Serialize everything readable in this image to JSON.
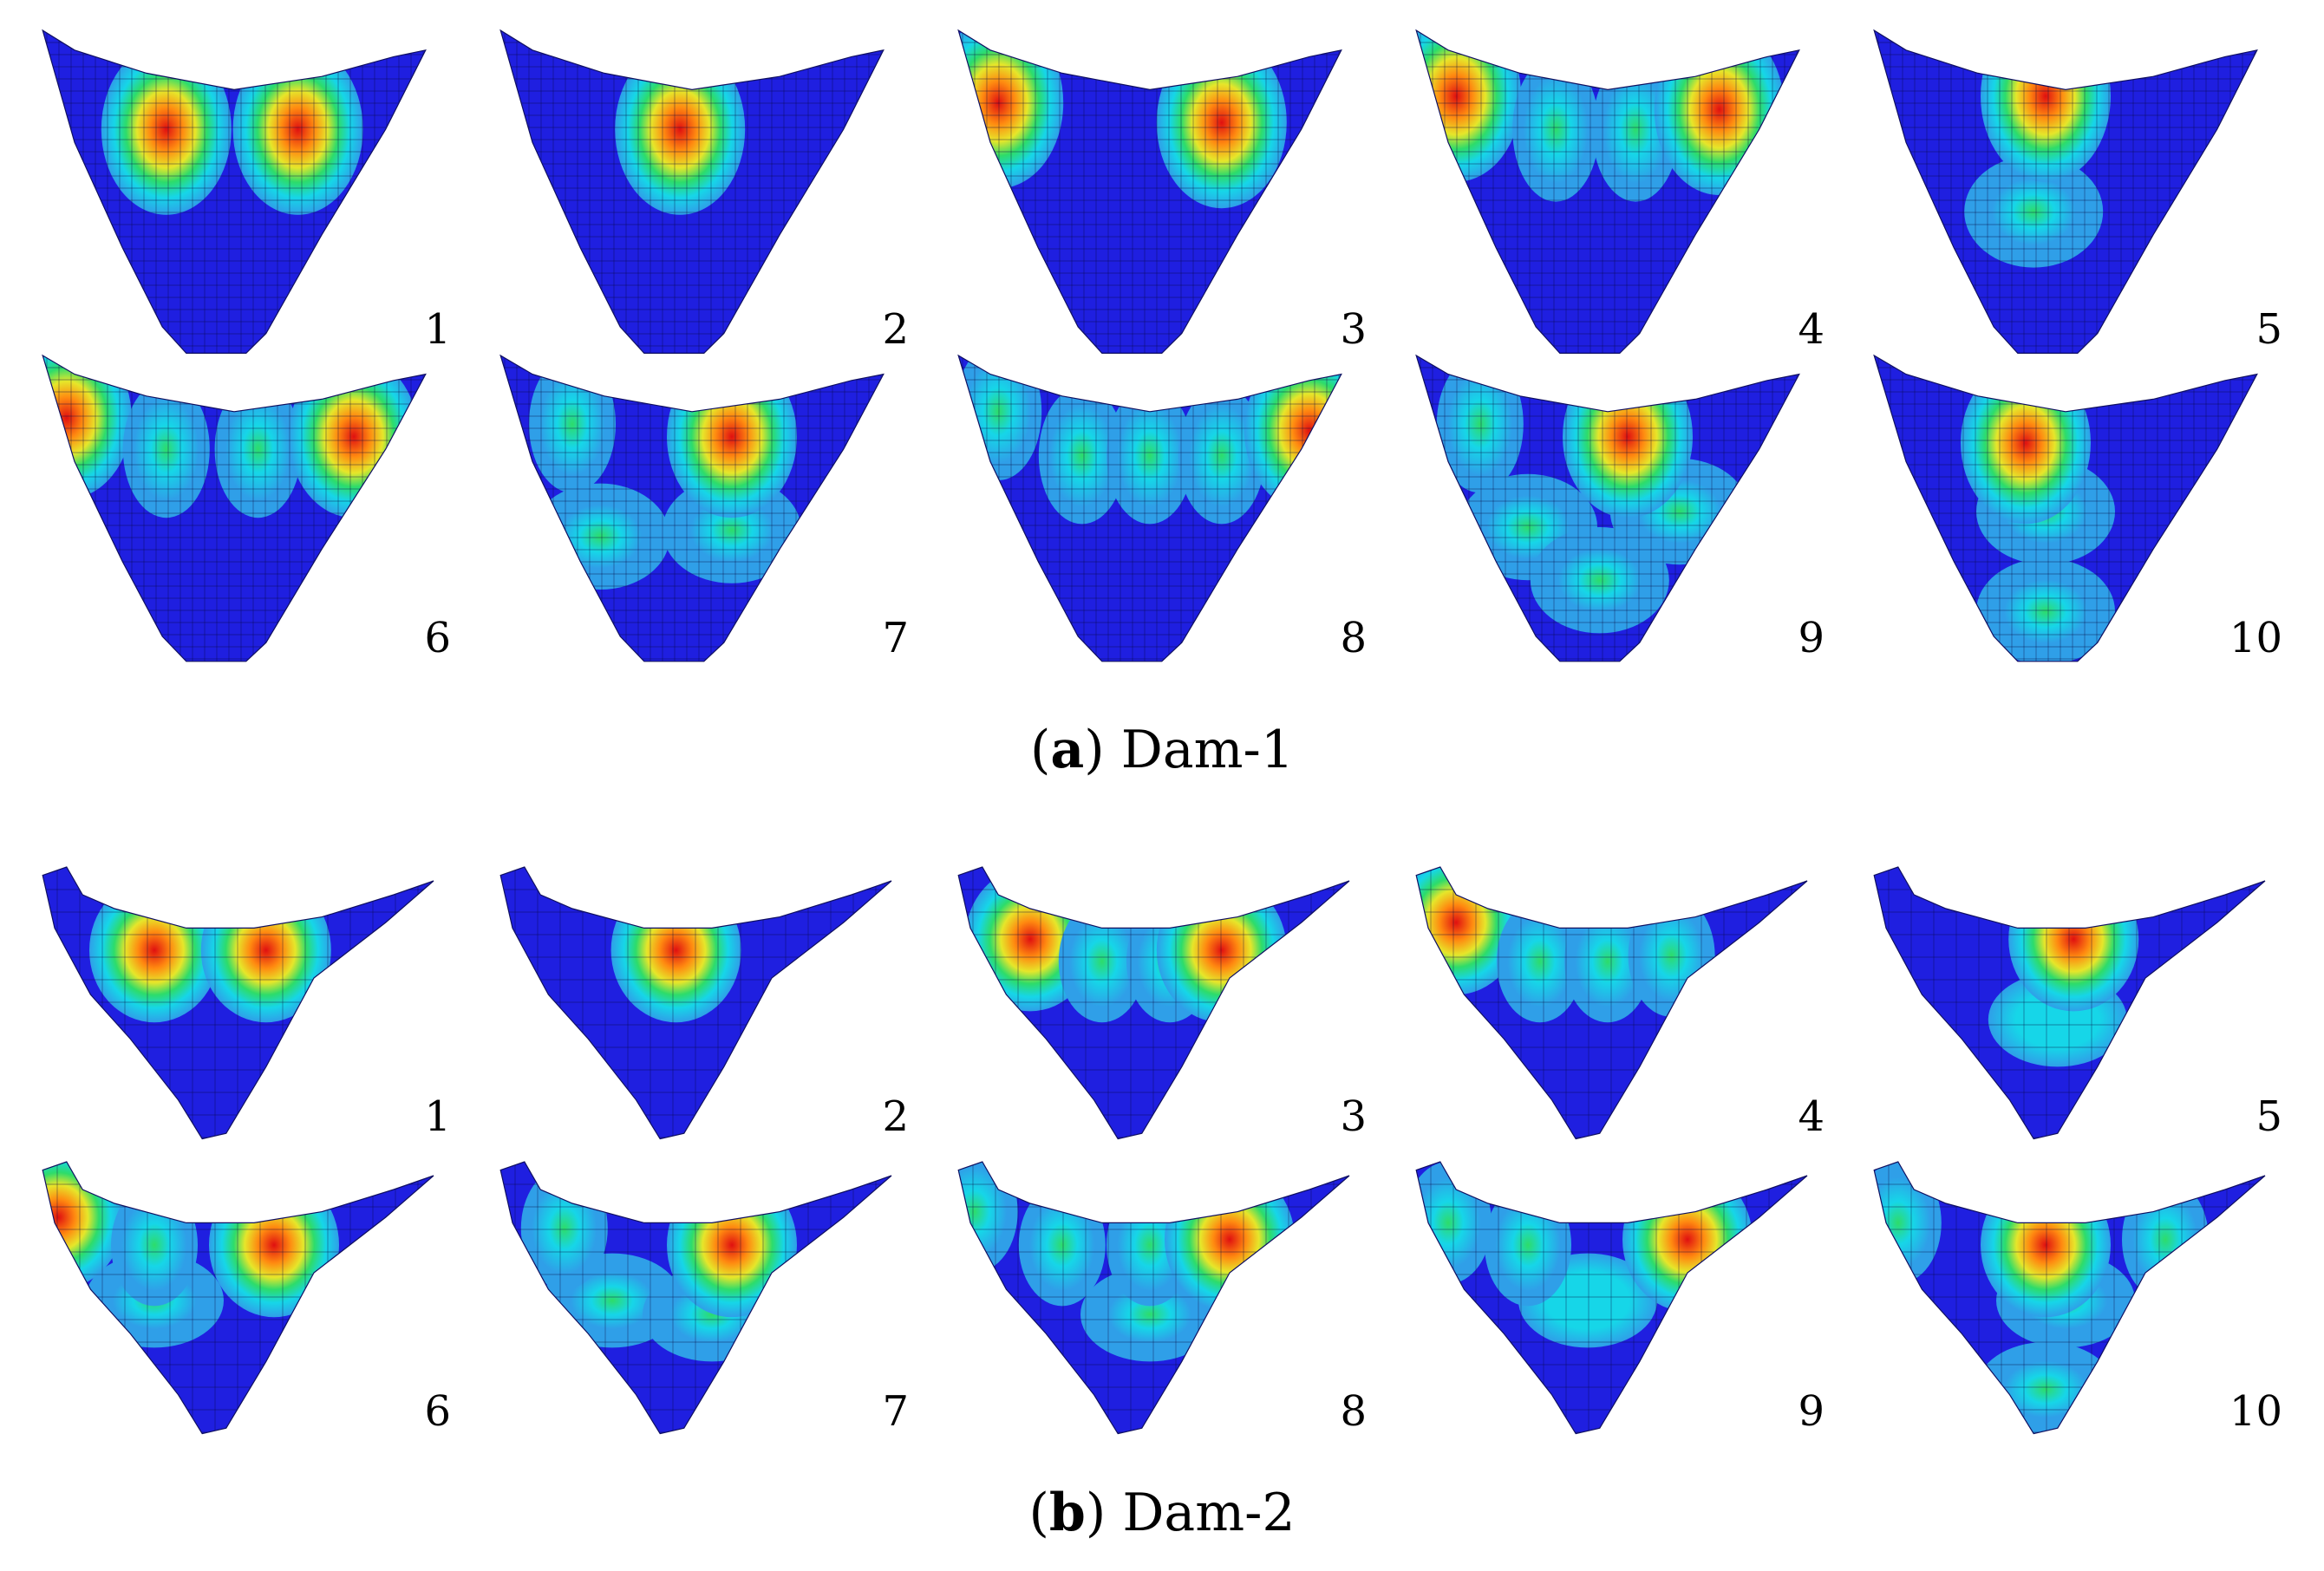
{
  "figures": [
    {
      "id": "dam1",
      "caption_letter": "a",
      "caption_text": "Dam-1",
      "panels": [
        {
          "label": "1",
          "hotspots": [
            [
              0.33,
              0.3,
              "hot"
            ],
            [
              0.66,
              0.3,
              "hot"
            ]
          ],
          "mid": []
        },
        {
          "label": "2",
          "hotspots": [
            [
              0.47,
              0.3,
              "hot"
            ]
          ],
          "mid": []
        },
        {
          "label": "3",
          "hotspots": [
            [
              0.12,
              0.22,
              "hot"
            ],
            [
              0.68,
              0.28,
              "hot"
            ]
          ],
          "mid": []
        },
        {
          "label": "4",
          "hotspots": [
            [
              0.12,
              0.2,
              "hot"
            ],
            [
              0.37,
              0.3,
              "warm"
            ],
            [
              0.57,
              0.3,
              "warm"
            ],
            [
              0.78,
              0.24,
              "hot"
            ]
          ],
          "mid": []
        },
        {
          "label": "5",
          "hotspots": [
            [
              0.45,
              0.2,
              "hot"
            ]
          ],
          "mid": [
            [
              0.42,
              0.55,
              "cool"
            ]
          ]
        },
        {
          "label": "6",
          "hotspots": [
            [
              0.08,
              0.2,
              "hot"
            ],
            [
              0.33,
              0.3,
              "warm"
            ],
            [
              0.56,
              0.3,
              "warm"
            ],
            [
              0.8,
              0.26,
              "hot"
            ]
          ],
          "mid": []
        },
        {
          "label": "7",
          "hotspots": [
            [
              0.2,
              0.22,
              "warm"
            ],
            [
              0.6,
              0.26,
              "hot"
            ]
          ],
          "mid": [
            [
              0.27,
              0.58,
              "cool"
            ],
            [
              0.6,
              0.56,
              "cool"
            ]
          ]
        },
        {
          "label": "8",
          "hotspots": [
            [
              0.12,
              0.18,
              "warm"
            ],
            [
              0.33,
              0.32,
              "warm"
            ],
            [
              0.5,
              0.32,
              "warm"
            ],
            [
              0.68,
              0.32,
              "warm"
            ],
            [
              0.9,
              0.24,
              "hot"
            ]
          ],
          "mid": []
        },
        {
          "label": "9",
          "hotspots": [
            [
              0.18,
              0.22,
              "warm"
            ],
            [
              0.55,
              0.26,
              "hot"
            ]
          ],
          "mid": [
            [
              0.3,
              0.55,
              "cool"
            ],
            [
              0.68,
              0.5,
              "cool"
            ],
            [
              0.48,
              0.72,
              "cool"
            ]
          ]
        },
        {
          "label": "10",
          "hotspots": [
            [
              0.4,
              0.28,
              "hot"
            ]
          ],
          "mid": [
            [
              0.45,
              0.5,
              "cool"
            ],
            [
              0.45,
              0.82,
              "cool"
            ]
          ]
        }
      ]
    },
    {
      "id": "dam2",
      "caption_letter": "b",
      "caption_text": "Dam-2",
      "panels": [
        {
          "label": "1",
          "hotspots": [
            [
              0.3,
              0.3,
              "hot"
            ],
            [
              0.58,
              0.3,
              "hot"
            ]
          ],
          "mid": []
        },
        {
          "label": "2",
          "hotspots": [
            [
              0.46,
              0.3,
              "hot"
            ]
          ],
          "mid": []
        },
        {
          "label": "3",
          "hotspots": [
            [
              0.2,
              0.26,
              "hot"
            ],
            [
              0.38,
              0.34,
              "warm"
            ],
            [
              0.55,
              0.34,
              "warm"
            ],
            [
              0.68,
              0.3,
              "hot"
            ]
          ],
          "mid": []
        },
        {
          "label": "4",
          "hotspots": [
            [
              0.12,
              0.2,
              "hot"
            ],
            [
              0.33,
              0.34,
              "warm"
            ],
            [
              0.5,
              0.34,
              "warm"
            ],
            [
              0.66,
              0.32,
              "warm"
            ]
          ],
          "mid": []
        },
        {
          "label": "5",
          "hotspots": [
            [
              0.52,
              0.26,
              "hot"
            ]
          ],
          "mid": [
            [
              0.48,
              0.55,
              "cyan"
            ]
          ]
        },
        {
          "label": "6",
          "hotspots": [
            [
              0.06,
              0.2,
              "hot"
            ],
            [
              0.3,
              0.3,
              "warm"
            ],
            [
              0.6,
              0.3,
              "hot"
            ]
          ],
          "mid": [
            [
              0.3,
              0.5,
              "cool"
            ]
          ]
        },
        {
          "label": "7",
          "hotspots": [
            [
              0.18,
              0.24,
              "warm"
            ],
            [
              0.6,
              0.3,
              "hot"
            ]
          ],
          "mid": [
            [
              0.3,
              0.5,
              "cool"
            ],
            [
              0.55,
              0.55,
              "cool"
            ]
          ]
        },
        {
          "label": "8",
          "hotspots": [
            [
              0.06,
              0.18,
              "warm"
            ],
            [
              0.28,
              0.3,
              "warm"
            ],
            [
              0.5,
              0.3,
              "warm"
            ],
            [
              0.7,
              0.28,
              "hot"
            ]
          ],
          "mid": [
            [
              0.5,
              0.55,
              "cool"
            ]
          ]
        },
        {
          "label": "9",
          "hotspots": [
            [
              0.1,
              0.22,
              "warm"
            ],
            [
              0.3,
              0.3,
              "warm"
            ],
            [
              0.7,
              0.28,
              "hot"
            ]
          ],
          "mid": [
            [
              0.45,
              0.5,
              "cyan"
            ]
          ]
        },
        {
          "label": "10",
          "hotspots": [
            [
              0.08,
              0.22,
              "warm"
            ],
            [
              0.45,
              0.3,
              "hot"
            ],
            [
              0.75,
              0.28,
              "warm"
            ]
          ],
          "mid": [
            [
              0.5,
              0.5,
              "cool"
            ],
            [
              0.45,
              0.82,
              "cool"
            ]
          ]
        }
      ]
    }
  ],
  "colors": {
    "base": "#1f1fe0",
    "cool": "#2f9fe8",
    "cyan": "#16d6e8",
    "green": "#2ddc6a",
    "yellow": "#e6e62a",
    "orange": "#ff8a10",
    "red": "#e01010",
    "mesh": "#0a0a40"
  }
}
